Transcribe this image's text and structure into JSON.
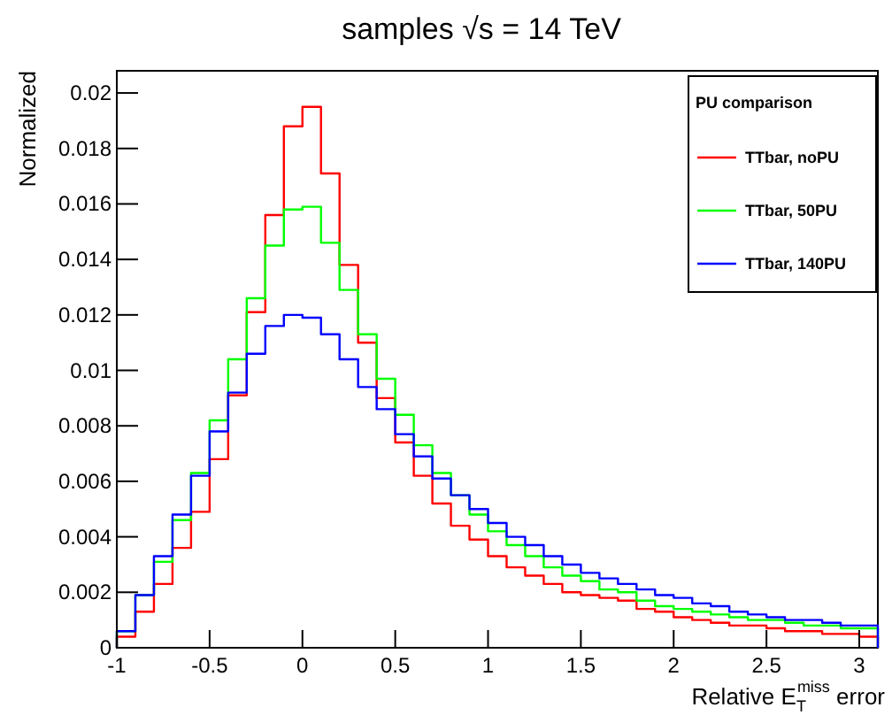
{
  "chart_data": {
    "type": "histogram",
    "title": "samples √s = 14 TeV",
    "xlabel": "Relative E$_{T}$$^{miss}$ error",
    "ylabel": "Normalized",
    "legend_title": "PU comparison",
    "legend": "top right",
    "grid": false,
    "bins": [
      -1,
      -0.9,
      -0.8,
      -0.7,
      -0.6,
      -0.5,
      -0.4,
      -0.3,
      -0.2,
      -0.1,
      0,
      0.1,
      0.2,
      0.3,
      0.4,
      0.5,
      0.6,
      0.7,
      0.8,
      0.9,
      1,
      1.1,
      1.2,
      1.3,
      1.4,
      1.5,
      1.6,
      1.7,
      1.8,
      1.9,
      2,
      2.1,
      2.2,
      2.3,
      2.4,
      2.5,
      2.6,
      2.7,
      2.8,
      2.9,
      3,
      3.1
    ],
    "xlim": [
      -1,
      3.1
    ],
    "xticks": [
      -1,
      -0.5,
      0,
      0.5,
      1,
      1.5,
      2,
      2.5,
      3
    ],
    "ylim": [
      0,
      0.0208
    ],
    "yticks": [
      0,
      0.002,
      0.004,
      0.006,
      0.008,
      0.01,
      0.012,
      0.014,
      0.016,
      0.018,
      0.02
    ],
    "series": [
      {
        "name": "TTbar, noPU",
        "color": "#ff0000",
        "values": [
          0.0004,
          0.0013,
          0.0023,
          0.0036,
          0.0049,
          0.0068,
          0.0091,
          0.0121,
          0.0156,
          0.0188,
          0.0195,
          0.0171,
          0.0138,
          0.011,
          0.009,
          0.0074,
          0.0062,
          0.0052,
          0.0044,
          0.0039,
          0.0033,
          0.0029,
          0.0026,
          0.0023,
          0.002,
          0.0019,
          0.0018,
          0.0017,
          0.0014,
          0.0013,
          0.0011,
          0.001,
          0.0009,
          0.0008,
          0.0008,
          0.0007,
          0.0006,
          0.0006,
          0.0005,
          0.0005,
          0.0004
        ]
      },
      {
        "name": "TTbar, 50PU",
        "color": "#00ff00",
        "values": [
          0.0006,
          0.0019,
          0.0031,
          0.0046,
          0.0063,
          0.0082,
          0.0104,
          0.0126,
          0.0145,
          0.0158,
          0.0159,
          0.0146,
          0.0129,
          0.0113,
          0.0097,
          0.0084,
          0.0073,
          0.0063,
          0.0055,
          0.0048,
          0.0042,
          0.0037,
          0.0033,
          0.0029,
          0.0026,
          0.0024,
          0.0021,
          0.002,
          0.0017,
          0.0015,
          0.0014,
          0.0013,
          0.0012,
          0.0011,
          0.001,
          0.001,
          0.0009,
          0.0008,
          0.0008,
          0.0007,
          0.0007
        ]
      },
      {
        "name": "TTbar, 140PU",
        "color": "#0000ff",
        "values": [
          0.0006,
          0.0019,
          0.0033,
          0.0048,
          0.0062,
          0.0078,
          0.0092,
          0.0106,
          0.0116,
          0.012,
          0.0119,
          0.0113,
          0.0104,
          0.0094,
          0.0086,
          0.0077,
          0.0069,
          0.0061,
          0.0055,
          0.005,
          0.0045,
          0.004,
          0.0037,
          0.0033,
          0.003,
          0.0027,
          0.0025,
          0.0023,
          0.0021,
          0.0019,
          0.0018,
          0.0016,
          0.0015,
          0.0013,
          0.0012,
          0.0011,
          0.001,
          0.001,
          0.0009,
          0.0008,
          0.0008
        ]
      }
    ]
  }
}
